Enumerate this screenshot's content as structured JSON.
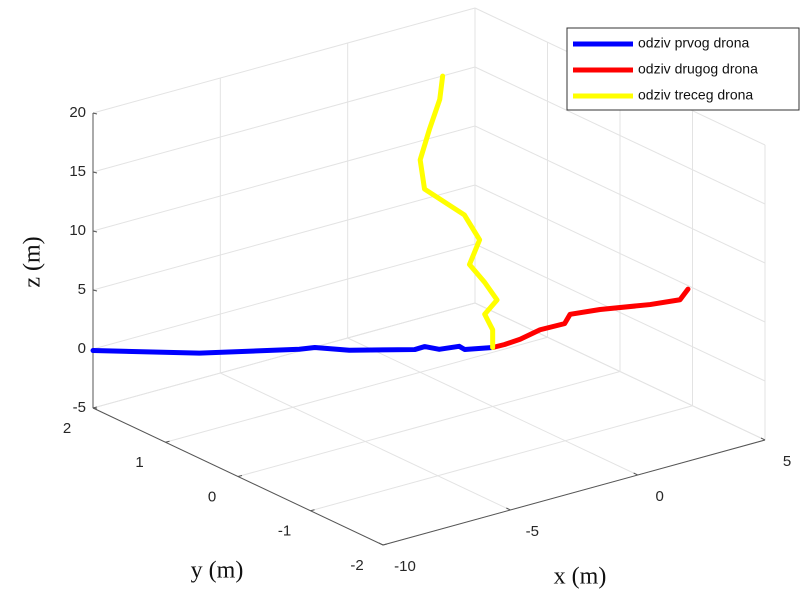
{
  "chart_data": {
    "type": "line3d",
    "xlabel": "x (m)",
    "ylabel": "y (m)",
    "zlabel": "z (m)",
    "xlim": [
      -10,
      5
    ],
    "ylim": [
      -2,
      2
    ],
    "zlim": [
      -5,
      20
    ],
    "xticks": [
      -10,
      -5,
      0,
      5
    ],
    "yticks": [
      -2,
      -1,
      0,
      1,
      2
    ],
    "zticks": [
      -5,
      0,
      5,
      10,
      15,
      20
    ],
    "grid": true,
    "legend": "top-right",
    "series": [
      {
        "name": "odziv prvog drona",
        "color": "#0000ff",
        "x": [
          0,
          -0.7,
          -0.83,
          -1.33,
          -1.7,
          -1.95,
          -3.58,
          -4.45,
          -4.83,
          -7.33,
          -10
        ],
        "y": [
          0,
          0.14,
          0.17,
          0.27,
          0.34,
          0.39,
          0.72,
          0.89,
          0.97,
          1.47,
          2
        ],
        "z": [
          0,
          -0.16,
          0.1,
          -0.15,
          0.1,
          -0.15,
          -0.2,
          0.06,
          -0.1,
          -0.4,
          -0.13
        ]
      },
      {
        "name": "odziv drugog drona",
        "color": "#ff0000",
        "x": [
          0,
          0.3,
          0.68,
          1.18,
          1.8,
          1.93,
          2.68,
          3.93,
          4.68,
          4.88
        ],
        "y": [
          0,
          -0.06,
          -0.14,
          -0.24,
          -0.36,
          -0.39,
          -0.54,
          -0.79,
          -0.94,
          -0.98
        ],
        "z": [
          0,
          0.25,
          0.7,
          1.5,
          2,
          2.8,
          3.2,
          3.6,
          4,
          4.9
        ]
      },
      {
        "name": "odziv treceg drona",
        "color": "#ffff00",
        "x": [
          0,
          0,
          0,
          0,
          0,
          0,
          0,
          0,
          0,
          0,
          0,
          0,
          0
        ],
        "y": [
          0,
          0,
          0.11,
          -0.06,
          0.11,
          0.32,
          0.18,
          0.39,
          0.94,
          1,
          0.87,
          0.73,
          0.69
        ],
        "z": [
          0,
          1.5,
          2.5,
          4.2,
          5.2,
          6.1,
          8.6,
          10.1,
          10.7,
          13,
          16,
          18.9,
          21
        ]
      }
    ]
  }
}
